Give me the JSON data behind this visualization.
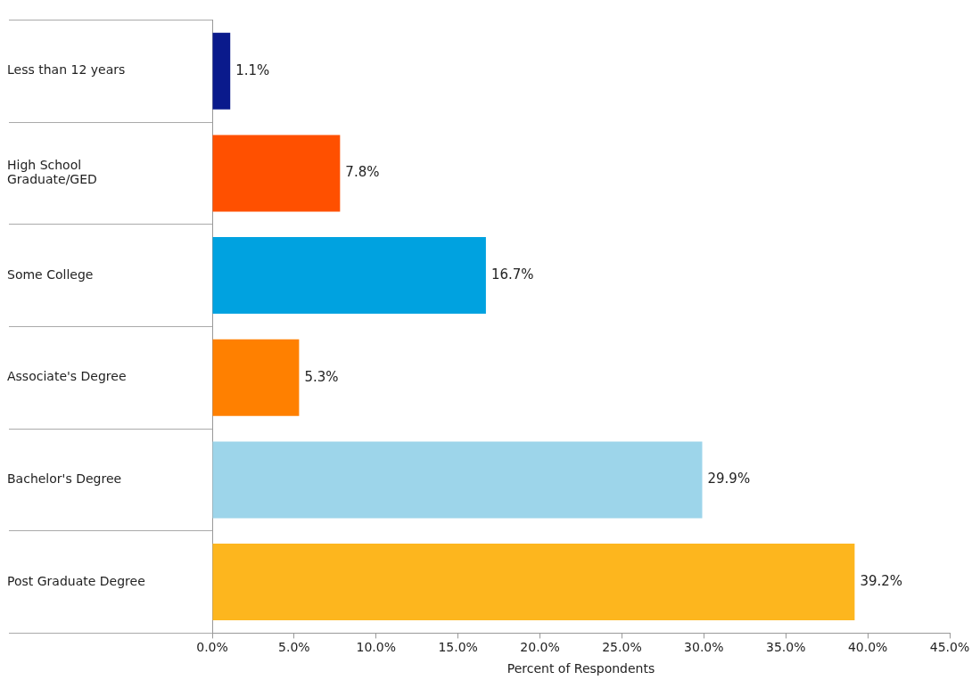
{
  "chart_data": {
    "type": "bar",
    "orientation": "horizontal",
    "xlabel": "Percent of Respondents",
    "categories": [
      "Less than 12 years",
      "High School Graduate/GED",
      "Some College",
      "Associate's Degree",
      "Bachelor's Degree",
      "Post Graduate Degree"
    ],
    "values": [
      1.1,
      7.8,
      16.7,
      5.3,
      29.9,
      39.2
    ],
    "colors": [
      "#0a1a8c",
      "#ff5000",
      "#00a2e0",
      "#ff8000",
      "#9dd5ea",
      "#fdb61e"
    ],
    "value_labels": [
      "1.1%",
      "7.8%",
      "16.7%",
      "5.3%",
      "29.9%",
      "39.2%"
    ],
    "xlim": [
      0,
      45
    ],
    "xticks": [
      {
        "value": 0,
        "label": "0.0%"
      },
      {
        "value": 5,
        "label": "5.0%"
      },
      {
        "value": 10,
        "label": "10.0%"
      },
      {
        "value": 15,
        "label": "15.0%"
      },
      {
        "value": 20,
        "label": "20.0%"
      },
      {
        "value": 25,
        "label": "25.0%"
      },
      {
        "value": 30,
        "label": "30.0%"
      },
      {
        "value": 35,
        "label": "35.0%"
      },
      {
        "value": 40,
        "label": "40.0%"
      },
      {
        "value": 45,
        "label": "45.0%"
      }
    ],
    "grid": false,
    "legend": false
  }
}
